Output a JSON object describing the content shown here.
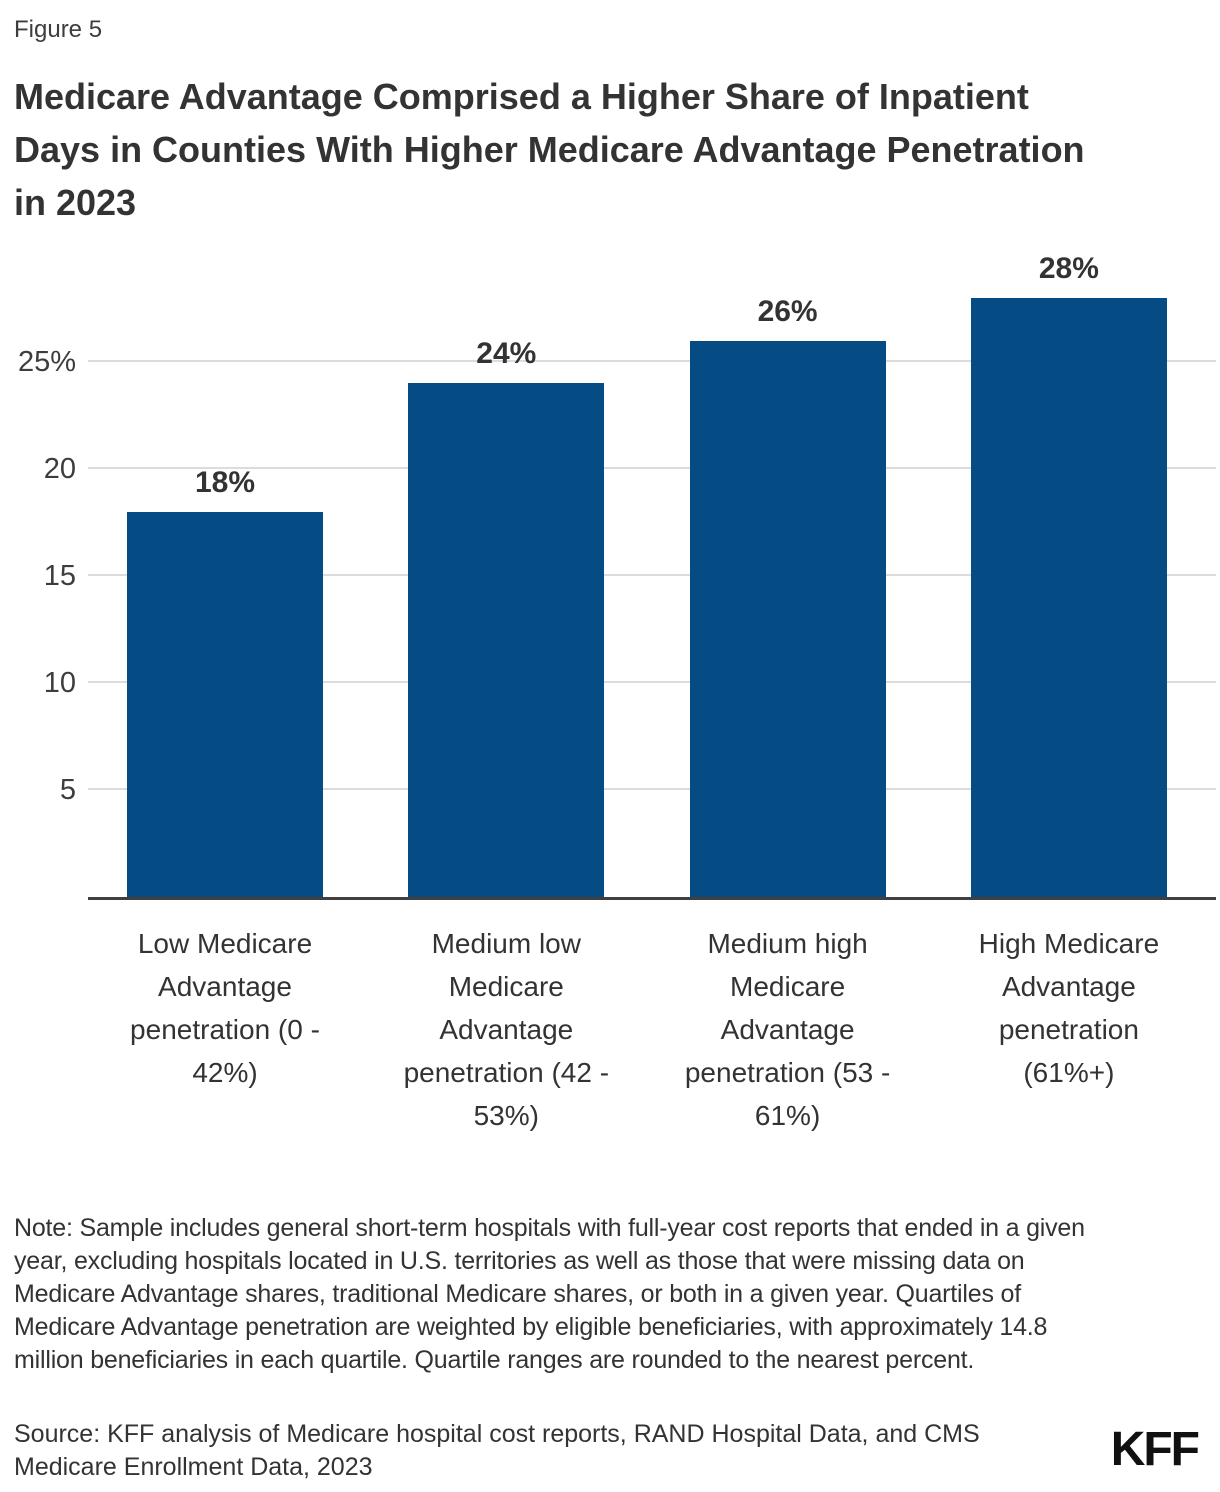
{
  "figure_label": "Figure 5",
  "title_lines": [
    "Medicare Advantage Comprised a Higher Share of Inpatient",
    "Days in Counties With Higher Medicare Advantage Penetration",
    "in 2023"
  ],
  "chart_data": {
    "type": "bar",
    "title": "Medicare Advantage Comprised a Higher Share of Inpatient Days in Counties With Higher Medicare Advantage Penetration in 2023",
    "categories": [
      "Low Medicare Advantage penetration (0 - 42%)",
      "Medium low Medicare Advantage penetration (42 - 53%)",
      "Medium high Medicare Advantage penetration (53 - 61%)",
      "High Medicare Advantage penetration (61%+)"
    ],
    "category_lines": [
      [
        "Low Medicare",
        "Advantage",
        "penetration (0 -",
        "42%)"
      ],
      [
        "Medium low",
        "Medicare",
        "Advantage",
        "penetration (42 -",
        "53%)"
      ],
      [
        "Medium high",
        "Medicare",
        "Advantage",
        "penetration (53 -",
        "61%)"
      ],
      [
        "High Medicare",
        "Advantage",
        "penetration",
        "(61%+)"
      ]
    ],
    "values": [
      18,
      24,
      26,
      28
    ],
    "value_labels": [
      "18%",
      "24%",
      "26%",
      "28%"
    ],
    "yticks": [
      5,
      10,
      15,
      20,
      25
    ],
    "ytick_labels": [
      "5",
      "10",
      "15",
      "20",
      "25%"
    ],
    "ylim": [
      0,
      30
    ],
    "xlabel": "",
    "ylabel": "",
    "grid": "horizontal",
    "legend": "none",
    "bar_color": "#054C85"
  },
  "note": "Note:  Sample includes general short-term hospitals with full-year cost reports that ended in a given year, excluding hospitals located in U.S. territories as well as those that were missing data on Medicare Advantage shares, traditional Medicare shares, or both in a given year. Quartiles of Medicare Advantage penetration are weighted by eligible beneficiaries, with approximately 14.8 million beneficiaries in each quartile. Quartile ranges are rounded to the nearest percent.",
  "source_lines": [
    "Source: KFF analysis of Medicare hospital cost reports, RAND Hospital Data, and CMS",
    "Medicare Enrollment Data, 2023"
  ],
  "logo_text": "KFF"
}
